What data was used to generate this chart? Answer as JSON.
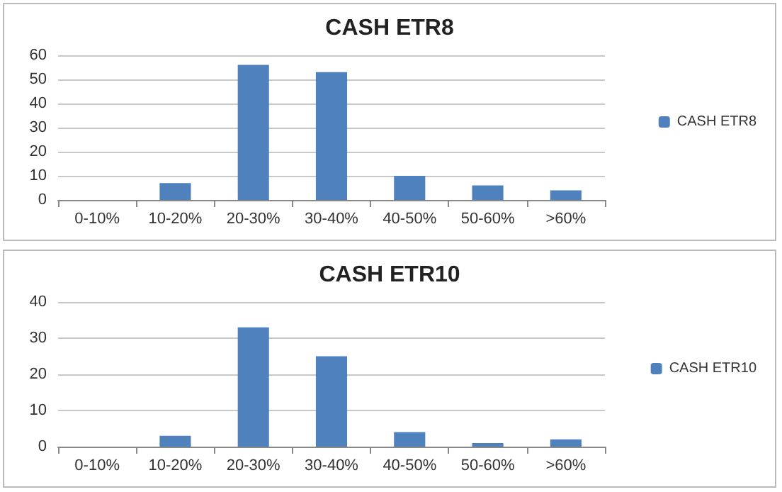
{
  "chart_data": [
    {
      "type": "bar",
      "title": "CASH ETR8",
      "categories": [
        "0-10%",
        "10-20%",
        "20-30%",
        "30-40%",
        "40-50%",
        "50-60%",
        ">60%"
      ],
      "series": [
        {
          "name": "CASH ETR8",
          "color": "#4f81bd",
          "values": [
            0,
            7,
            56,
            53,
            10,
            6,
            4
          ]
        }
      ],
      "ylim": [
        0,
        60
      ],
      "yticks": [
        0,
        10,
        20,
        30,
        40,
        50,
        60
      ],
      "grid": "y",
      "legend": "right"
    },
    {
      "type": "bar",
      "title": "CASH ETR10",
      "categories": [
        "0-10%",
        "10-20%",
        "20-30%",
        "30-40%",
        "40-50%",
        "50-60%",
        ">60%"
      ],
      "series": [
        {
          "name": "CASH ETR10",
          "color": "#4f81bd",
          "values": [
            0,
            3,
            33,
            25,
            4,
            1,
            2
          ]
        }
      ],
      "ylim": [
        0,
        40
      ],
      "yticks": [
        0,
        10,
        20,
        30,
        40
      ],
      "grid": "y",
      "legend": "right"
    }
  ]
}
